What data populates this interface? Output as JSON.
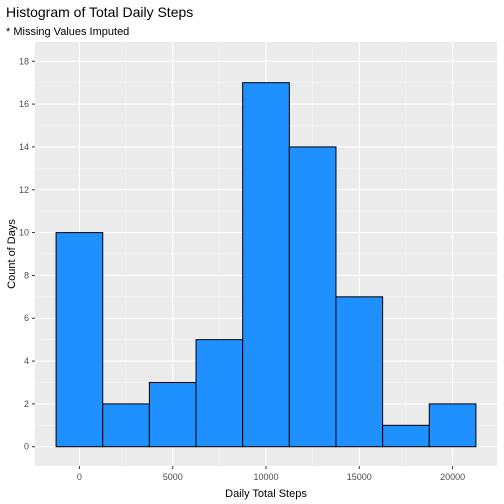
{
  "chart_data": {
    "type": "bar",
    "title": "Histogram of Total Daily Steps",
    "subtitle": "* Missing Values Imputed",
    "xlabel": "Daily Total Steps",
    "ylabel": "Count of Days",
    "bin_width": 2500,
    "bins": [
      {
        "x_start": -1250,
        "x_end": 1250,
        "count": 10
      },
      {
        "x_start": 1250,
        "x_end": 3750,
        "count": 2
      },
      {
        "x_start": 3750,
        "x_end": 6250,
        "count": 3
      },
      {
        "x_start": 6250,
        "x_end": 8750,
        "count": 5
      },
      {
        "x_start": 8750,
        "x_end": 11250,
        "count": 17
      },
      {
        "x_start": 11250,
        "x_end": 13750,
        "count": 14
      },
      {
        "x_start": 13750,
        "x_end": 16250,
        "count": 7
      },
      {
        "x_start": 16250,
        "x_end": 18750,
        "count": 1
      },
      {
        "x_start": 18750,
        "x_end": 21250,
        "count": 2
      }
    ],
    "xlim": [
      -2380,
      22380
    ],
    "ylim": [
      -0.9,
      18.9
    ],
    "x_ticks": [
      0,
      5000,
      10000,
      15000,
      20000
    ],
    "x_tick_labels": [
      "0",
      "5000",
      "10000",
      "15000",
      "20000"
    ],
    "y_ticks": [
      0,
      2,
      4,
      6,
      8,
      10,
      12,
      14,
      16,
      18
    ],
    "y_tick_labels": [
      "0",
      "2",
      "4",
      "6",
      "8",
      "10",
      "12",
      "14",
      "16",
      "18"
    ],
    "grid": true,
    "colors": {
      "bar_fill": "#1E90FF",
      "bar_stroke": "#000000",
      "panel_background": "#EBEBEB",
      "grid_major": "#FFFFFF",
      "grid_minor": "#F5F5F5"
    }
  }
}
